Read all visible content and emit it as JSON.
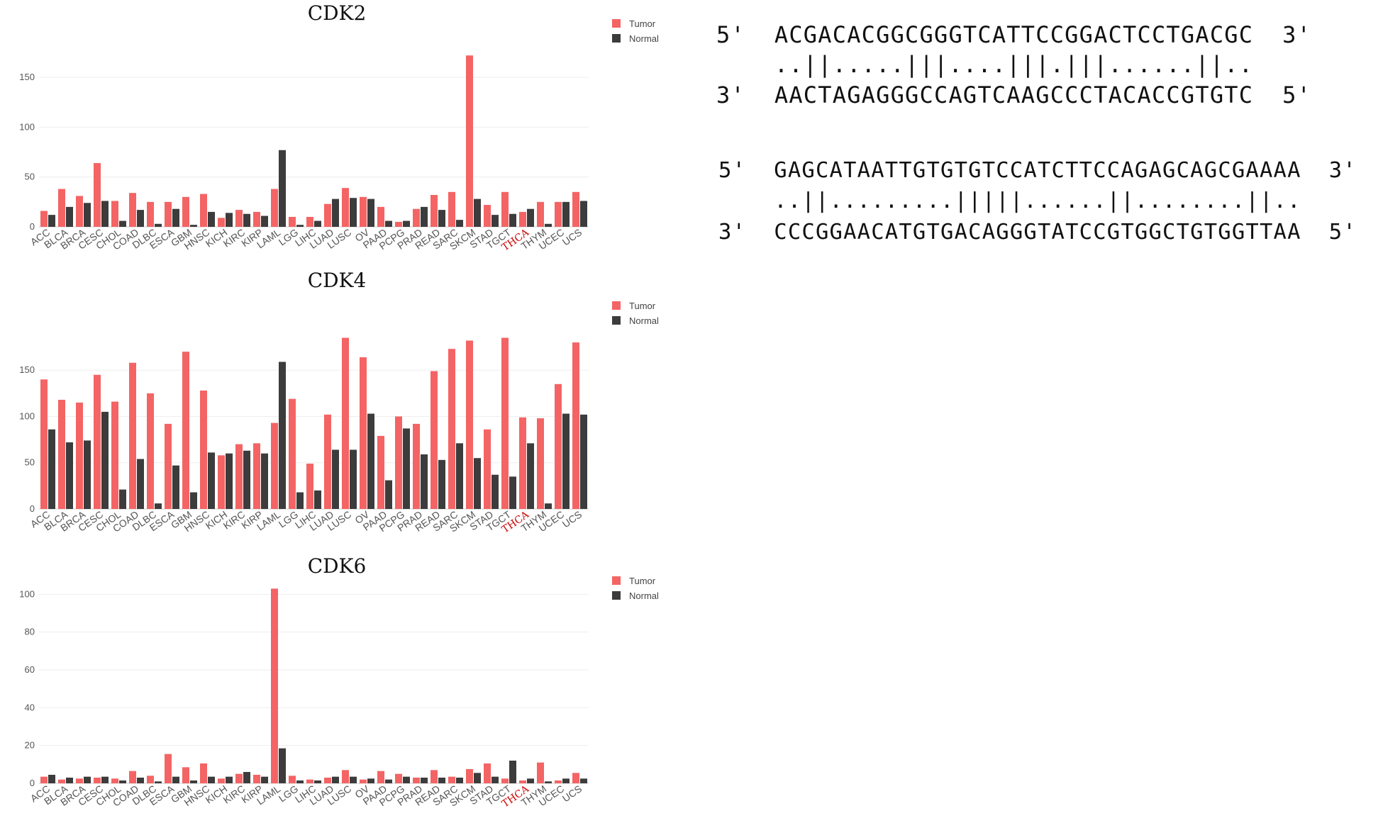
{
  "colors": {
    "tumor": "#f46464",
    "normal": "#3c3c3c",
    "highlight": "#cc0000",
    "grid": "#eeeeee",
    "axis_text": "#555555"
  },
  "legend": {
    "tumor": "Tumor",
    "normal": "Normal"
  },
  "chart_data": [
    {
      "type": "bar",
      "title": "CDK2",
      "categories": [
        "ACC",
        "BLCA",
        "BRCA",
        "CESC",
        "CHOL",
        "COAD",
        "DLBC",
        "ESCA",
        "GBM",
        "HNSC",
        "KICH",
        "KIRC",
        "KIRP",
        "LAML",
        "LGG",
        "LIHC",
        "LUAD",
        "LUSC",
        "OV",
        "PAAD",
        "PCPG",
        "PRAD",
        "READ",
        "SARC",
        "SKCM",
        "STAD",
        "TGCT",
        "THCA",
        "THYM",
        "UCEC",
        "UCS"
      ],
      "highlight_category": "THCA",
      "series": [
        {
          "name": "Tumor",
          "values": [
            16,
            38,
            31,
            64,
            26,
            34,
            25,
            25,
            30,
            33,
            9,
            17,
            15,
            38,
            10,
            10,
            23,
            39,
            30,
            20,
            5,
            18,
            32,
            35,
            172,
            22,
            35,
            15,
            25,
            25,
            35
          ]
        },
        {
          "name": "Normal",
          "values": [
            12,
            20,
            24,
            26,
            6,
            17,
            3,
            18,
            2,
            15,
            14,
            13,
            11,
            77,
            2,
            6,
            28,
            29,
            28,
            6,
            6,
            20,
            17,
            7,
            28,
            12,
            13,
            18,
            3,
            25,
            26
          ]
        }
      ],
      "yticks": [
        0,
        50,
        100,
        150
      ],
      "ylim": [
        0,
        175
      ],
      "grid": true,
      "legend_position": "top-right"
    },
    {
      "type": "bar",
      "title": "CDK4",
      "categories": [
        "ACC",
        "BLCA",
        "BRCA",
        "CESC",
        "CHOL",
        "COAD",
        "DLBC",
        "ESCA",
        "GBM",
        "HNSC",
        "KICH",
        "KIRC",
        "KIRP",
        "LAML",
        "LGG",
        "LIHC",
        "LUAD",
        "LUSC",
        "OV",
        "PAAD",
        "PCPG",
        "PRAD",
        "READ",
        "SARC",
        "SKCM",
        "STAD",
        "TGCT",
        "THCA",
        "THYM",
        "UCEC",
        "UCS"
      ],
      "highlight_category": "THCA",
      "series": [
        {
          "name": "Tumor",
          "values": [
            140,
            118,
            115,
            145,
            116,
            158,
            125,
            92,
            170,
            128,
            58,
            70,
            71,
            93,
            119,
            49,
            102,
            185,
            164,
            79,
            100,
            92,
            149,
            173,
            182,
            86,
            185,
            99,
            98,
            135,
            180
          ]
        },
        {
          "name": "Normal",
          "values": [
            86,
            72,
            74,
            105,
            21,
            54,
            6,
            47,
            18,
            61,
            60,
            63,
            60,
            159,
            18,
            20,
            64,
            64,
            103,
            31,
            87,
            59,
            53,
            71,
            55,
            37,
            35,
            71,
            6,
            103,
            102
          ]
        }
      ],
      "yticks": [
        0,
        50,
        100,
        150
      ],
      "ylim": [
        0,
        190
      ],
      "grid": true,
      "legend_position": "top-right"
    },
    {
      "type": "bar",
      "title": "CDK6",
      "categories": [
        "ACC",
        "BLCA",
        "BRCA",
        "CESC",
        "CHOL",
        "COAD",
        "DLBC",
        "ESCA",
        "GBM",
        "HNSC",
        "KICH",
        "KIRC",
        "KIRP",
        "LAML",
        "LGG",
        "LIHC",
        "LUAD",
        "LUSC",
        "OV",
        "PAAD",
        "PCPG",
        "PRAD",
        "READ",
        "SARC",
        "SKCM",
        "STAD",
        "TGCT",
        "THCA",
        "THYM",
        "UCEC",
        "UCS"
      ],
      "highlight_category": "THCA",
      "series": [
        {
          "name": "Tumor",
          "values": [
            3.5,
            2,
            2.5,
            3,
            2.5,
            6.5,
            4,
            15.5,
            8.5,
            10.5,
            2.5,
            5,
            4.5,
            103,
            4,
            2,
            3,
            7,
            2,
            6.5,
            5,
            3,
            7,
            3.5,
            7.5,
            10.5,
            2.5,
            1.5,
            11,
            1.5,
            5.5
          ]
        },
        {
          "name": "Normal",
          "values": [
            4.5,
            3,
            3.5,
            3.5,
            1.5,
            3,
            1,
            3.5,
            1.5,
            3.5,
            3.5,
            6,
            3.5,
            18.5,
            1.5,
            1.5,
            3.5,
            3.5,
            2.5,
            2,
            3.5,
            3,
            3,
            3,
            5.5,
            3.5,
            12,
            2.5,
            1,
            2.5,
            2.5
          ]
        }
      ],
      "yticks": [
        0,
        20,
        40,
        60,
        80,
        100
      ],
      "ylim": [
        0,
        105
      ],
      "grid": true,
      "legend_position": "top-right"
    }
  ],
  "alignments": [
    {
      "top": "5'  ACGACACGGCGGGTCATTCCGGACTCCTGACGC  3'",
      "match": "    ..||.....|||....|||.|||......||..",
      "bottom": "3'  AACTAGAGGGCCAGTCAAGCCCTACACCGTGTC  5'"
    },
    {
      "top": "5'  GAGCATAATTGTGTGTCCATCTTCCAGAGCAGCGAAAA  3'",
      "match": "    ..||.........|||||......||........||..",
      "bottom": "3'  CCCGGAACATGTGACAGGGTATCCGTGGCTGTGGTTAA  5'"
    }
  ]
}
